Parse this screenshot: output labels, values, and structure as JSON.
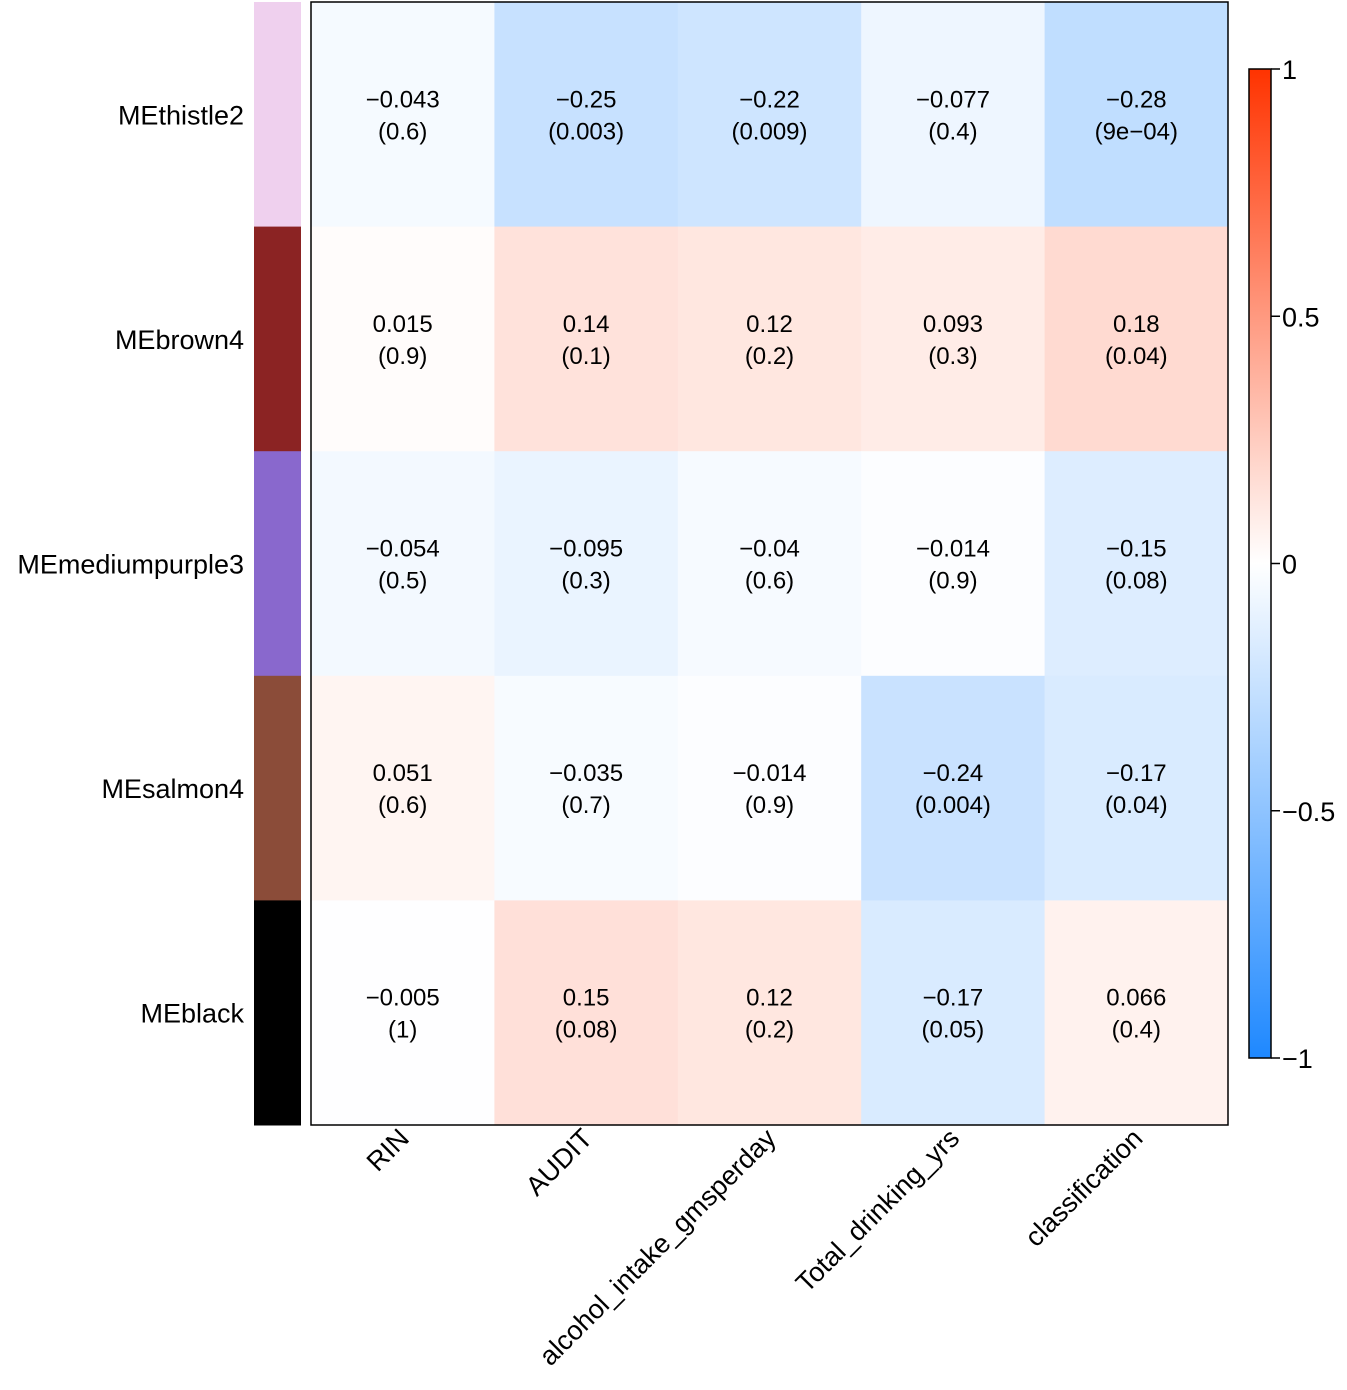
{
  "chart_data": {
    "type": "heatmap",
    "title": "",
    "xlabel": "",
    "ylabel": "",
    "rows": [
      "MEthistle2",
      "MEbrown4",
      "MEmediumpurple3",
      "MEsalmon4",
      "MEblack"
    ],
    "row_colors": [
      "#EFD0EE",
      "#8B2323",
      "#8968CD",
      "#8B4C39",
      "#000000"
    ],
    "columns": [
      "RIN",
      "AUDIT",
      "alcohol_intake_gmsperday",
      "Total_drinking_yrs",
      "classification"
    ],
    "values": [
      [
        -0.043,
        -0.25,
        -0.22,
        -0.077,
        -0.28
      ],
      [
        0.015,
        0.14,
        0.12,
        0.093,
        0.18
      ],
      [
        -0.054,
        -0.095,
        -0.04,
        -0.014,
        -0.15
      ],
      [
        0.051,
        -0.035,
        -0.014,
        -0.24,
        -0.17
      ],
      [
        -0.005,
        0.15,
        0.12,
        -0.17,
        0.066
      ]
    ],
    "value_labels": [
      [
        "−0.043",
        "−0.25",
        "−0.22",
        "−0.077",
        "−0.28"
      ],
      [
        "0.015",
        "0.14",
        "0.12",
        "0.093",
        "0.18"
      ],
      [
        "−0.054",
        "−0.095",
        "−0.04",
        "−0.014",
        "−0.15"
      ],
      [
        "0.051",
        "−0.035",
        "−0.014",
        "−0.24",
        "−0.17"
      ],
      [
        "−0.005",
        "0.15",
        "0.12",
        "−0.17",
        "0.066"
      ]
    ],
    "p_labels": [
      [
        "(0.6)",
        "(0.003)",
        "(0.009)",
        "(0.4)",
        "(9e−04)"
      ],
      [
        "(0.9)",
        "(0.1)",
        "(0.2)",
        "(0.3)",
        "(0.04)"
      ],
      [
        "(0.5)",
        "(0.3)",
        "(0.6)",
        "(0.9)",
        "(0.08)"
      ],
      [
        "(0.6)",
        "(0.7)",
        "(0.9)",
        "(0.004)",
        "(0.04)"
      ],
      [
        "(1)",
        "(0.08)",
        "(0.2)",
        "(0.05)",
        "(0.4)"
      ]
    ],
    "colorbar": {
      "range": [
        -1,
        1
      ],
      "ticks": [
        1,
        0.5,
        0,
        -0.5,
        -1
      ],
      "tick_labels": [
        "1",
        "0.5",
        "0",
        "−0.5",
        "−1"
      ],
      "low_color": "#1E88FF",
      "mid_color": "#FFFFFF",
      "high_color": "#FF3300"
    }
  }
}
